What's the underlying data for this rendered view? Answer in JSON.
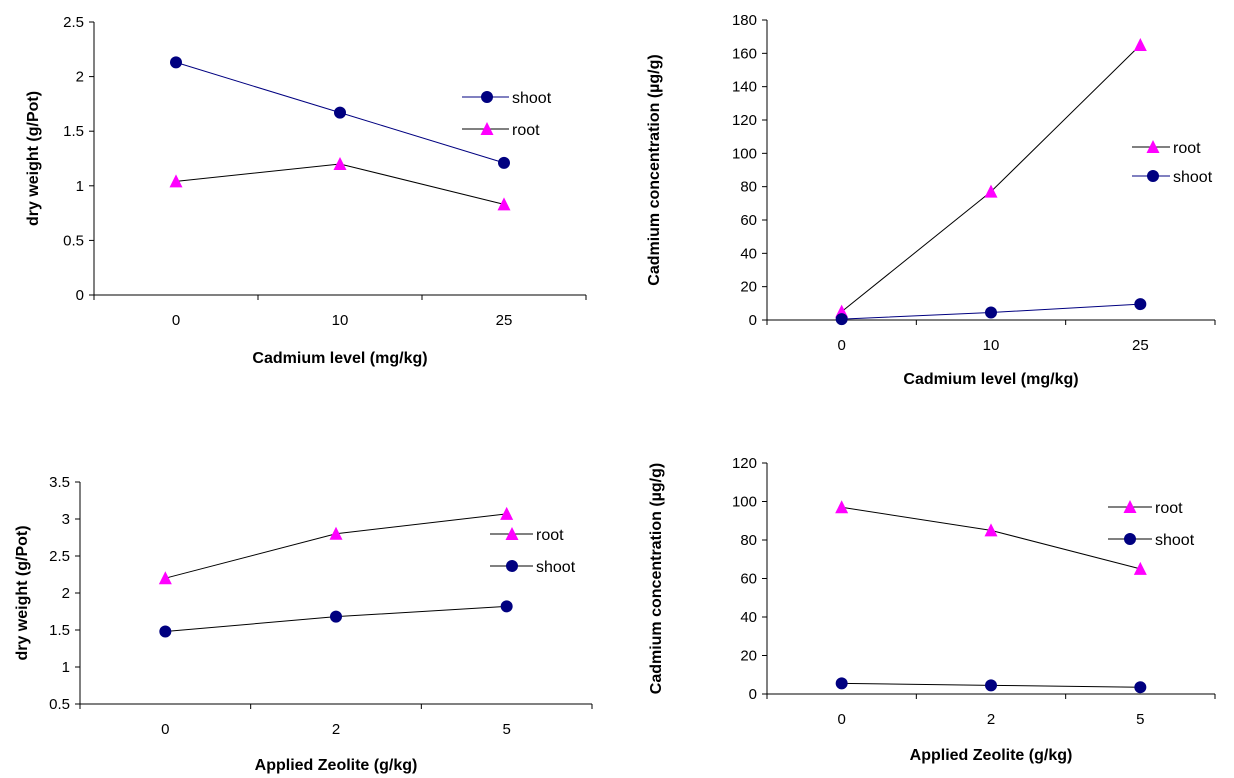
{
  "chart_data": [
    {
      "type": "line",
      "categories": [
        "0",
        "10",
        "25"
      ],
      "xlabel": "Cadmium level (mg/kg)",
      "ylabel": "dry weight (g/Pot)",
      "ylim": [
        0,
        2.5
      ],
      "yticks": [
        "0",
        "0.5",
        "1",
        "1.5",
        "2",
        "2.5"
      ],
      "grid": false,
      "legend_position": "top-right",
      "series": [
        {
          "name": "shoot",
          "values": [
            2.13,
            1.67,
            1.21
          ],
          "color": "#000080",
          "line_color": "#000080",
          "marker": "circle"
        },
        {
          "name": "root",
          "values": [
            1.04,
            1.2,
            0.83
          ],
          "color": "#FF00FF",
          "line_color": "#000000",
          "marker": "triangle"
        }
      ]
    },
    {
      "type": "line",
      "categories": [
        "0",
        "10",
        "25"
      ],
      "xlabel": "Cadmium level (mg/kg)",
      "ylabel": "Cadmium concentration (µg/g)",
      "ylim": [
        0,
        180
      ],
      "yticks": [
        "0",
        "20",
        "40",
        "60",
        "80",
        "100",
        "120",
        "140",
        "160",
        "180"
      ],
      "grid": false,
      "legend_position": "right",
      "series": [
        {
          "name": "root",
          "values": [
            5,
            77,
            165
          ],
          "color": "#FF00FF",
          "line_color": "#000000",
          "marker": "triangle"
        },
        {
          "name": "shoot",
          "values": [
            0.5,
            4.5,
            9.5
          ],
          "color": "#000080",
          "line_color": "#000080",
          "marker": "circle"
        }
      ]
    },
    {
      "type": "line",
      "categories": [
        "0",
        "2",
        "5"
      ],
      "xlabel": "Applied Zeolite (g/kg)",
      "ylabel": "dry weight (g/Pot)",
      "ylim": [
        0.5,
        3.5
      ],
      "yticks": [
        "0.5",
        "1",
        "1.5",
        "2",
        "2.5",
        "3",
        "3.5"
      ],
      "grid": false,
      "legend_position": "right",
      "series": [
        {
          "name": "root",
          "values": [
            2.2,
            2.8,
            3.07
          ],
          "color": "#FF00FF",
          "line_color": "#000000",
          "marker": "triangle"
        },
        {
          "name": "shoot",
          "values": [
            1.48,
            1.68,
            1.82
          ],
          "color": "#000080",
          "line_color": "#000000",
          "marker": "circle"
        }
      ]
    },
    {
      "type": "line",
      "categories": [
        "0",
        "2",
        "5"
      ],
      "xlabel": "Applied Zeolite (g/kg)",
      "ylabel": "Cadmium concentration (µg/g)",
      "ylim": [
        0,
        120
      ],
      "yticks": [
        "0",
        "20",
        "40",
        "60",
        "80",
        "100",
        "120"
      ],
      "grid": false,
      "legend_position": "right",
      "series": [
        {
          "name": "root",
          "values": [
            97,
            85,
            65
          ],
          "color": "#FF00FF",
          "line_color": "#000000",
          "marker": "triangle"
        },
        {
          "name": "shoot",
          "values": [
            5.5,
            4.5,
            3.5
          ],
          "color": "#000080",
          "line_color": "#000000",
          "marker": "circle"
        }
      ]
    }
  ]
}
